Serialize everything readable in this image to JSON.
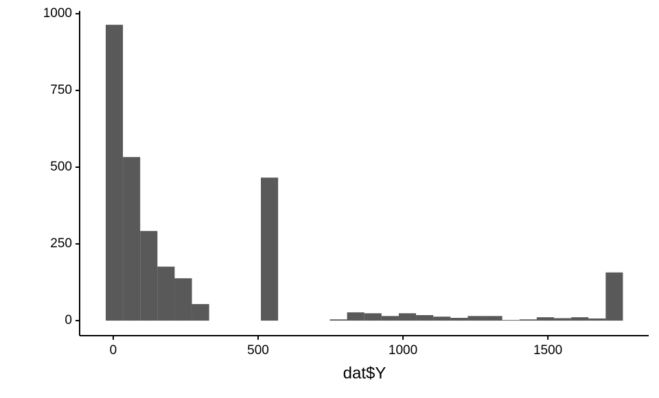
{
  "chart_data": {
    "type": "histogram",
    "x_label": "dat$Y",
    "color": "#595959",
    "bins": [
      -26,
      33.5,
      93,
      152.5,
      212,
      271.5,
      331,
      390.5,
      450,
      509.5,
      569,
      628.5,
      688,
      747.5,
      807,
      866.5,
      926,
      985.5,
      1045,
      1104.5,
      1164,
      1223.5,
      1283,
      1342.5,
      1402,
      1461.5,
      1521,
      1580.5,
      1640,
      1699.5,
      1759
    ],
    "values": [
      964,
      533,
      292,
      176,
      138,
      54,
      0,
      0,
      0,
      466,
      0,
      0,
      0,
      4,
      27,
      24,
      15,
      24,
      18,
      13,
      9,
      15,
      15,
      2,
      4,
      11,
      8,
      11,
      7,
      157
    ],
    "xlim": [
      -116,
      1848
    ],
    "ylim": [
      -49,
      1009
    ],
    "xticks": [
      0,
      500,
      1000,
      1500
    ],
    "yticks": [
      0,
      250,
      500,
      750,
      1000
    ]
  }
}
